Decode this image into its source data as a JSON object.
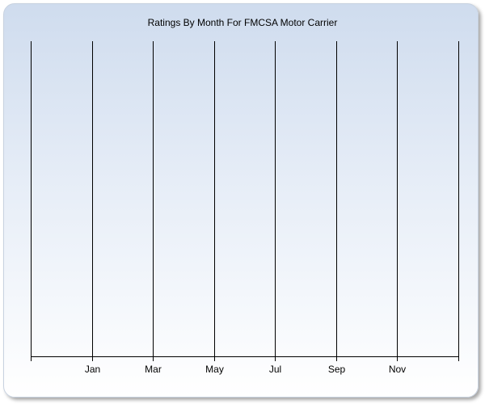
{
  "chart_data": {
    "type": "line",
    "title": "Ratings By Month For FMCSA Motor Carrier",
    "x_tick_labels": [
      "",
      "Jan",
      "Mar",
      "May",
      "Jul",
      "Sep",
      "Nov",
      ""
    ],
    "series": [],
    "grid": "vertical",
    "legend": "none"
  },
  "colors": {
    "background_top": "#cfdcee",
    "background_bottom": "#ffffff",
    "gridline": "#000000"
  }
}
